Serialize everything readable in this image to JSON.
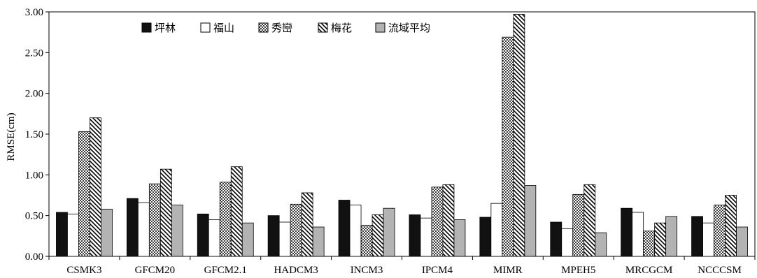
{
  "chart_data": {
    "type": "bar",
    "title": "",
    "xlabel": "",
    "ylabel": "RMSE(cm)",
    "ylim": [
      0,
      3.0
    ],
    "yticks": [
      "0.00",
      "0.50",
      "1.00",
      "1.50",
      "2.00",
      "2.50",
      "3.00"
    ],
    "grid": false,
    "legend_position": "top-left",
    "categories": [
      "CSMK3",
      "GFCM20",
      "GFCM2.1",
      "HADCM3",
      "INCM3",
      "IPCM4",
      "MIMR",
      "MPEH5",
      "MRCGCM",
      "NCCCSM"
    ],
    "series": [
      {
        "name": "坪林",
        "pattern": "solid-black",
        "values": [
          0.54,
          0.71,
          0.52,
          0.5,
          0.69,
          0.51,
          0.48,
          0.42,
          0.59,
          0.49
        ]
      },
      {
        "name": "福山",
        "pattern": "white",
        "values": [
          0.52,
          0.66,
          0.45,
          0.42,
          0.63,
          0.47,
          0.65,
          0.34,
          0.54,
          0.41
        ]
      },
      {
        "name": "秀巒",
        "pattern": "dots",
        "values": [
          1.53,
          0.89,
          0.91,
          0.64,
          0.38,
          0.85,
          2.69,
          0.76,
          0.31,
          0.63
        ]
      },
      {
        "name": "梅花",
        "pattern": "diagonal",
        "values": [
          1.7,
          1.07,
          1.1,
          0.78,
          0.51,
          0.88,
          2.97,
          0.88,
          0.41,
          0.75
        ]
      },
      {
        "name": "流域平均",
        "pattern": "gray",
        "values": [
          0.58,
          0.63,
          0.41,
          0.36,
          0.59,
          0.45,
          0.87,
          0.29,
          0.49,
          0.36
        ]
      }
    ]
  },
  "colors": {
    "solid_black": "#111111",
    "white": "#ffffff",
    "gray": "#b3b3b3",
    "outline": "#000000"
  }
}
